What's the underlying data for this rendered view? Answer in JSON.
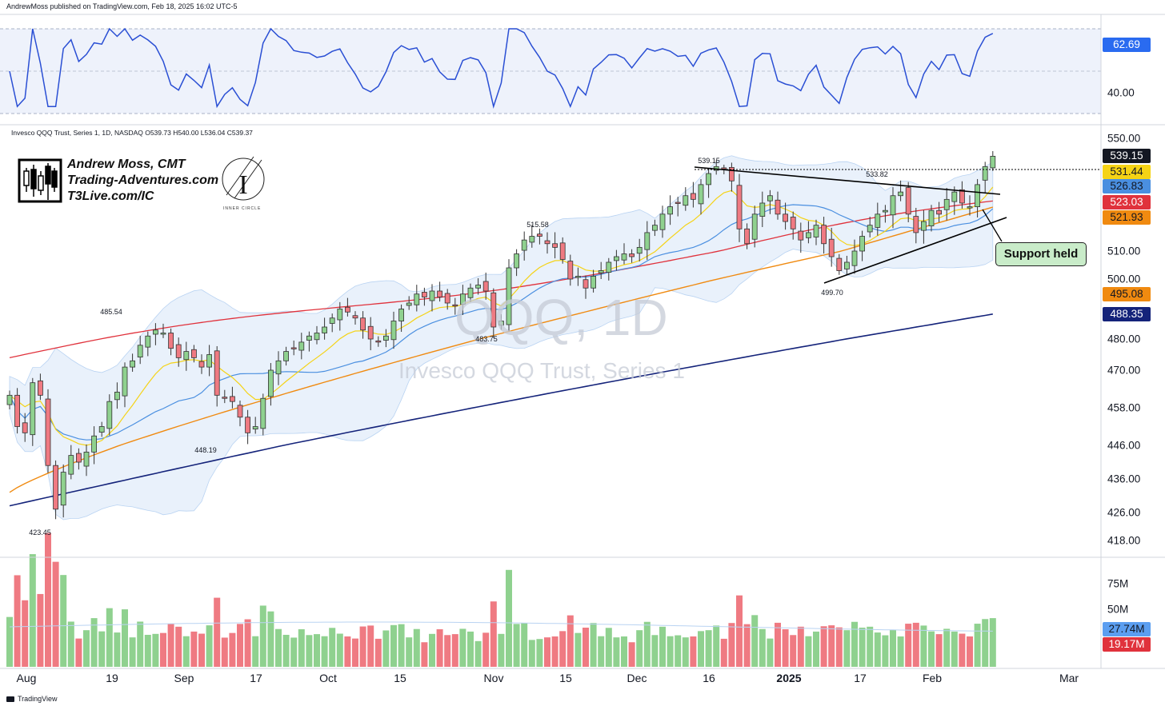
{
  "header": {
    "published": "AndrewMoss published on TradingView.com, Feb 18, 2025 16:02 UTC-5"
  },
  "legend": {
    "text": "Invesco QQQ Trust, Series 1, 1D, NASDAQ  O539.73  H540.00  L536.04  C539.37"
  },
  "watermark": {
    "symbol": "QQQ, 1D",
    "name": "Invesco QQQ Trust, Series 1"
  },
  "branding": {
    "lines": [
      "Andrew Moss, CMT",
      "Trading-Adventures.com",
      "T3Live.com/IC"
    ],
    "logo_label": "INNER CIRCLE"
  },
  "callout": {
    "text": "Support held"
  },
  "footer": {
    "text": "TradingView"
  },
  "colors": {
    "up": "#8fd18f",
    "down": "#ef7a82",
    "rsi": "#2a4fd4",
    "ema10": "#f5d315",
    "ema20": "#4a8fe0",
    "sma50": "#e0323c",
    "sma100": "#f08a10",
    "sma200": "#14237a",
    "band": "#e9f1fb"
  },
  "chart_data": {
    "type": "candlestick",
    "x_labels": [
      "Aug",
      "19",
      "Sep",
      "17",
      "Oct",
      "15",
      "Nov",
      "15",
      "Dec",
      "16",
      "2025",
      "17",
      "Feb",
      "Mar"
    ],
    "y_ticks": [
      "550.00",
      "510.00",
      "500.00",
      "480.00",
      "470.00",
      "458.00",
      "446.00",
      "436.00",
      "426.00",
      "418.00"
    ],
    "rsi_ticks": [
      "40.00"
    ],
    "volume_ticks": [
      "75M",
      "50M"
    ],
    "price_labels": [
      {
        "value": "539.15",
        "bg": "#131722",
        "fg": "#ffffff"
      },
      {
        "value": "531.44",
        "bg": "#f5d315",
        "fg": "#131722"
      },
      {
        "value": "526.83",
        "bg": "#4a8fe0",
        "fg": "#131722"
      },
      {
        "value": "523.03",
        "bg": "#e0323c",
        "fg": "#ffffff"
      },
      {
        "value": "521.93",
        "bg": "#f08a10",
        "fg": "#131722"
      },
      {
        "value": "495.08",
        "bg": "#f08a10",
        "fg": "#131722"
      },
      {
        "value": "488.35",
        "bg": "#14237a",
        "fg": "#ffffff"
      }
    ],
    "rsi_label": {
      "value": "62.69",
      "bg": "#2a6bf0",
      "fg": "#ffffff"
    },
    "volume_labels": [
      {
        "value": "27.74M",
        "bg": "#5b9ef0",
        "fg": "#131722"
      },
      {
        "value": "19.17M",
        "bg": "#e0323c",
        "fg": "#ffffff"
      }
    ],
    "annotations": [
      "539.15",
      "533.82",
      "515.58",
      "485.54",
      "483.75",
      "499.70",
      "448.19",
      "423.45"
    ],
    "closes": [
      462,
      452,
      450,
      466,
      462,
      440,
      427,
      438,
      443,
      441,
      444,
      449,
      452,
      460,
      463,
      471,
      473,
      478,
      481,
      483,
      482,
      477,
      474,
      476,
      474,
      471,
      475,
      462,
      461,
      460,
      455,
      450,
      452,
      461,
      470,
      473,
      476,
      477,
      479,
      481,
      482,
      484,
      487,
      490,
      489,
      487,
      483,
      480,
      479,
      481,
      486,
      490,
      492,
      495,
      494,
      496,
      494,
      492,
      491,
      495,
      497,
      498,
      496,
      484,
      486,
      504,
      509,
      513,
      514,
      514,
      512,
      511,
      507,
      500,
      501,
      497,
      501,
      503,
      506,
      508,
      509,
      508,
      511,
      515,
      517,
      520,
      522,
      523,
      525,
      524,
      528,
      531,
      534,
      533,
      529,
      516,
      512,
      520,
      523,
      525,
      520,
      518,
      516,
      513,
      515,
      517,
      512,
      508,
      503,
      506,
      510,
      514,
      517,
      520,
      521,
      525,
      526,
      520,
      515,
      518,
      521,
      520,
      524,
      526,
      523,
      522,
      528,
      534,
      539
    ]
  }
}
